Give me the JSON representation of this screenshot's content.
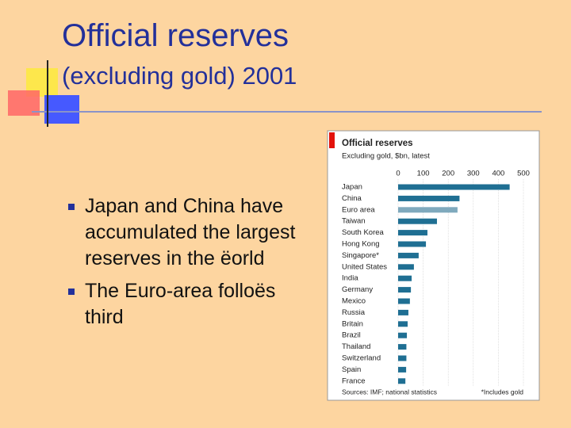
{
  "slide": {
    "title": "Official reserves",
    "subtitle": "(excluding gold) 2001",
    "bullets": [
      "Japan and China have accumulated the largest reserves in the ëorld",
      "The Euro-area folloës third"
    ]
  },
  "chart_data": {
    "type": "hbar",
    "title": "Official reserves",
    "subtitle": "Excluding gold, $bn, latest",
    "categories": [
      "Japan",
      "China",
      "Euro area",
      "Taiwan",
      "South Korea",
      "Hong Kong",
      "Singapore*",
      "United States",
      "India",
      "Germany",
      "Mexico",
      "Russia",
      "Britain",
      "Brazil",
      "Thailand",
      "Switzerland",
      "Spain",
      "France"
    ],
    "values": [
      445,
      245,
      237,
      155,
      117,
      111,
      82,
      63,
      54,
      51,
      47,
      41,
      38,
      35,
      33,
      33,
      32,
      29
    ],
    "colors": [
      "#1f6f93",
      "#1f6f93",
      "#7fa9bd",
      "#1f6f93",
      "#1f6f93",
      "#1f6f93",
      "#1f6f93",
      "#1f6f93",
      "#1f6f93",
      "#1f6f93",
      "#1f6f93",
      "#1f6f93",
      "#1f6f93",
      "#1f6f93",
      "#1f6f93",
      "#1f6f93",
      "#1f6f93",
      "#1f6f93"
    ],
    "xlim": [
      0,
      500
    ],
    "xticks": [
      0,
      100,
      200,
      300,
      400,
      500
    ],
    "grid": true,
    "source": "Sources: IMF; national statistics",
    "note": "*Includes gold"
  }
}
